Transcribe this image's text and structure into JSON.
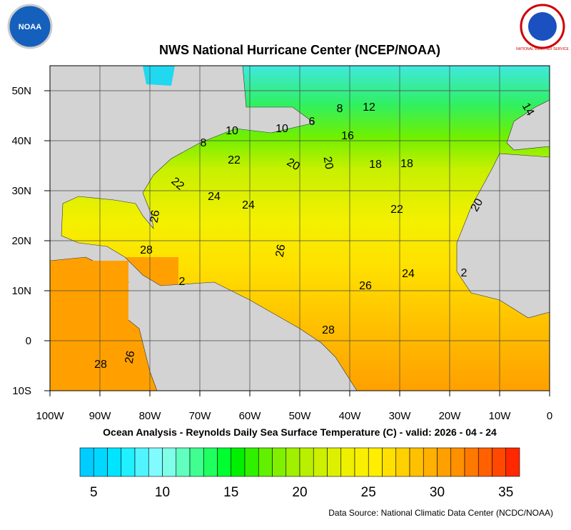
{
  "header": {
    "title": "NWS National Hurricane Center (NCEP/NOAA)",
    "noaa_logo": "NOAA",
    "nws_logo": "NATIONAL WEATHER SERVICE"
  },
  "map": {
    "lon_labels": [
      "100W",
      "90W",
      "80W",
      "70W",
      "60W",
      "50W",
      "40W",
      "30W",
      "20W",
      "10W",
      "0"
    ],
    "lat_labels": [
      "50N",
      "40N",
      "30N",
      "20N",
      "10N",
      "0",
      "10S"
    ],
    "contour_labels": [
      "6",
      "8",
      "12",
      "14",
      "10",
      "10",
      "8",
      "16",
      "22",
      "20",
      "20",
      "18",
      "18",
      "22",
      "24",
      "24",
      "22",
      "20",
      "26",
      "28",
      "26",
      "24",
      "26",
      "28",
      "28",
      "26",
      "2",
      "2"
    ]
  },
  "caption": "Ocean Analysis - Reynolds Daily Sea Surface Temperature (C) - valid: 2026 - 04 - 24",
  "colorbar": {
    "range": [
      4,
      36
    ],
    "ticks": [
      5,
      10,
      15,
      20,
      25,
      30,
      35
    ],
    "colors": [
      "#00ccff",
      "#00d8ff",
      "#00e4ff",
      "#20f0ff",
      "#50f5ff",
      "#80fcff",
      "#80ffe8",
      "#60ffc0",
      "#40ff90",
      "#20ff60",
      "#00ff30",
      "#00f000",
      "#30f000",
      "#60f000",
      "#80f000",
      "#a0f000",
      "#b8f000",
      "#ccf000",
      "#ddf000",
      "#eef000",
      "#f8f000",
      "#ffee00",
      "#ffe000",
      "#ffd000",
      "#ffc000",
      "#ffb000",
      "#ffa000",
      "#ff9000",
      "#ff7800",
      "#ff6000",
      "#ff4800",
      "#ff2800"
    ]
  },
  "source": "Data Source: National Climatic Data Center (NCDC/NOAA)"
}
